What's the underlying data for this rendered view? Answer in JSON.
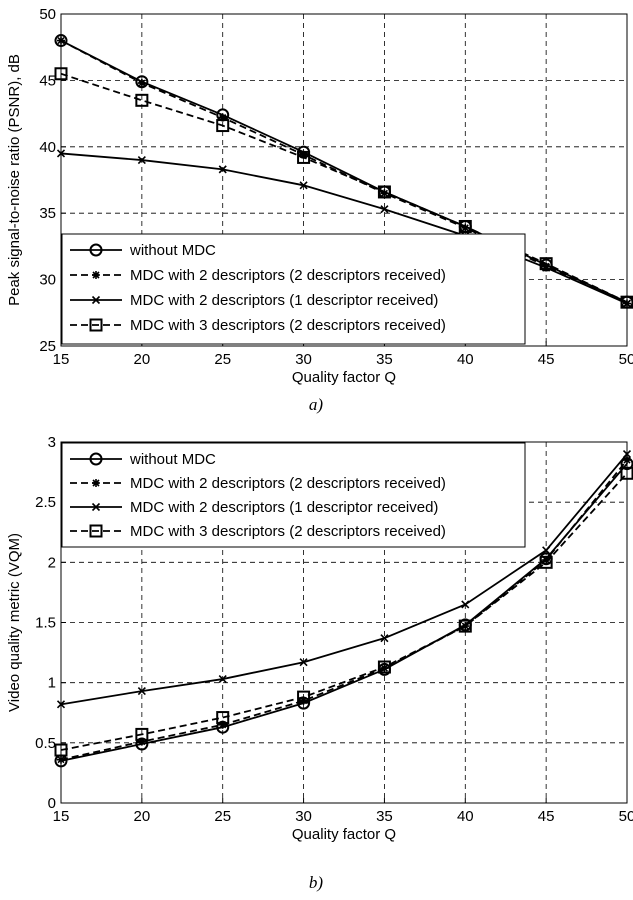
{
  "chart_data": [
    {
      "type": "line",
      "caption": "a)",
      "xlabel": "Quality factor Q",
      "ylabel": "Peak signal-to-noise ratio (PSNR), dB",
      "xlim": [
        15,
        50
      ],
      "ylim": [
        25,
        50
      ],
      "xticks": [
        "15",
        "20",
        "25",
        "30",
        "35",
        "40",
        "45",
        "50"
      ],
      "yticks": [
        "25",
        "30",
        "35",
        "40",
        "45",
        "50"
      ],
      "grid": true,
      "legend_position": "bottom-left",
      "x": [
        15,
        20,
        25,
        30,
        35,
        40,
        45,
        50
      ],
      "series": [
        {
          "name": "without MDC",
          "marker": "circle",
          "dash": "solid",
          "values": [
            48.0,
            44.9,
            42.4,
            39.6,
            36.6,
            34.0,
            31.1,
            28.3
          ]
        },
        {
          "name": "MDC with 2 descriptors (2 descriptors received)",
          "marker": "star",
          "dash": "dashed",
          "values": [
            48.0,
            44.8,
            42.2,
            39.4,
            36.5,
            33.9,
            31.0,
            28.2
          ]
        },
        {
          "name": "MDC with 2 descriptors (1 descriptor received)",
          "marker": "x",
          "dash": "solid",
          "values": [
            39.5,
            39.0,
            38.3,
            37.1,
            35.3,
            33.3,
            30.9,
            28.2
          ]
        },
        {
          "name": "MDC with 3 descriptors (2 descriptors received)",
          "marker": "square",
          "dash": "dashed",
          "values": [
            45.5,
            43.5,
            41.6,
            39.2,
            36.6,
            34.0,
            31.2,
            28.3
          ]
        }
      ]
    },
    {
      "type": "line",
      "caption": "b)",
      "xlabel": "Quality factor Q",
      "ylabel": "Video quality metric (VQM)",
      "xlim": [
        15,
        50
      ],
      "ylim": [
        0,
        3
      ],
      "xticks": [
        "15",
        "20",
        "25",
        "30",
        "35",
        "40",
        "45",
        "50"
      ],
      "yticks": [
        "0",
        "0.5",
        "1",
        "1.5",
        "2",
        "2.5",
        "3"
      ],
      "grid": true,
      "legend_position": "top-left",
      "x": [
        15,
        20,
        25,
        30,
        35,
        40,
        45,
        50
      ],
      "series": [
        {
          "name": "without MDC",
          "marker": "circle",
          "dash": "solid",
          "values": [
            0.35,
            0.49,
            0.63,
            0.83,
            1.11,
            1.48,
            2.03,
            2.82
          ]
        },
        {
          "name": "MDC with 2 descriptors (2 descriptors received)",
          "marker": "star",
          "dash": "dashed",
          "values": [
            0.36,
            0.51,
            0.65,
            0.85,
            1.12,
            1.47,
            2.02,
            2.85
          ]
        },
        {
          "name": "MDC with 2 descriptors (1 descriptor received)",
          "marker": "x",
          "dash": "solid",
          "values": [
            0.82,
            0.93,
            1.03,
            1.17,
            1.37,
            1.65,
            2.1,
            2.9
          ]
        },
        {
          "name": "MDC with 3 descriptors (2 descriptors received)",
          "marker": "square",
          "dash": "dashed",
          "values": [
            0.44,
            0.57,
            0.71,
            0.88,
            1.13,
            1.47,
            2.0,
            2.74
          ]
        }
      ]
    }
  ]
}
